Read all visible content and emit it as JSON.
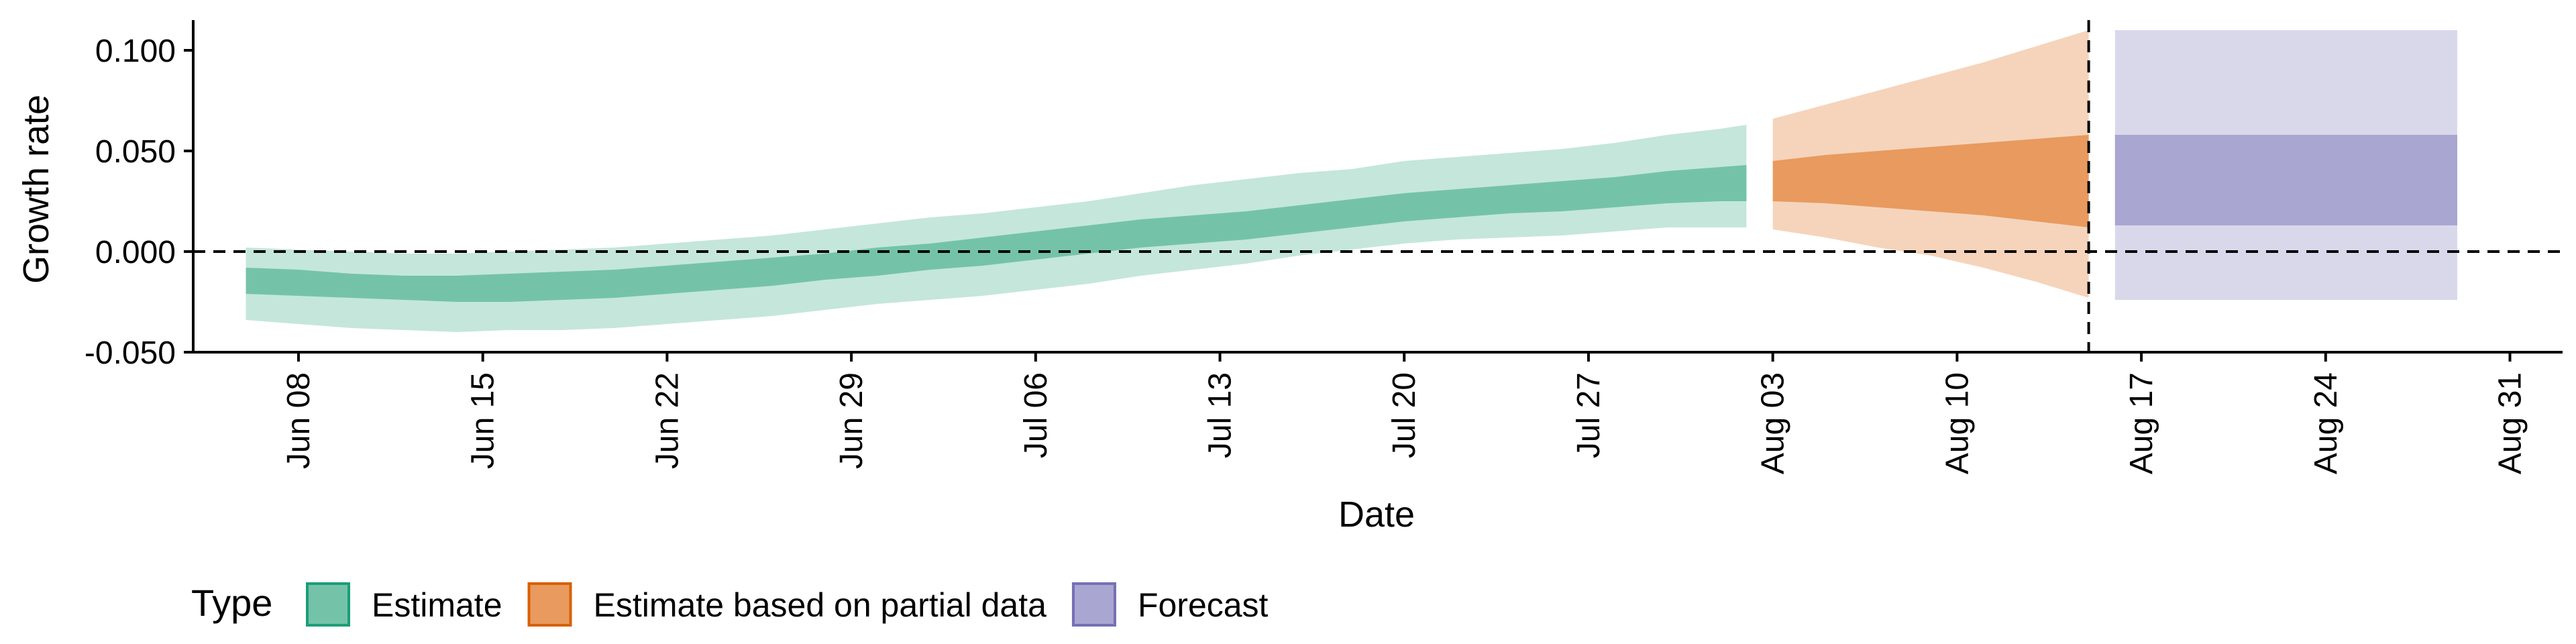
{
  "chart_data": {
    "type": "area",
    "xlabel": "Date",
    "ylabel": "Growth rate",
    "x_type": "date",
    "xlim": [
      "2020-06-04",
      "2020-09-02"
    ],
    "ylim": [
      -0.05,
      0.115
    ],
    "y_ticks": [
      {
        "value": -0.05,
        "label": "-0.050"
      },
      {
        "value": 0.0,
        "label": "0.000"
      },
      {
        "value": 0.05,
        "label": "0.050"
      },
      {
        "value": 0.1,
        "label": "0.100"
      }
    ],
    "x_ticks": [
      {
        "date": "2020-06-08",
        "label": "Jun 08"
      },
      {
        "date": "2020-06-15",
        "label": "Jun 15"
      },
      {
        "date": "2020-06-22",
        "label": "Jun 22"
      },
      {
        "date": "2020-06-29",
        "label": "Jun 29"
      },
      {
        "date": "2020-07-06",
        "label": "Jul 06"
      },
      {
        "date": "2020-07-13",
        "label": "Jul 13"
      },
      {
        "date": "2020-07-20",
        "label": "Jul 20"
      },
      {
        "date": "2020-07-27",
        "label": "Jul 27"
      },
      {
        "date": "2020-08-03",
        "label": "Aug 03"
      },
      {
        "date": "2020-08-10",
        "label": "Aug 10"
      },
      {
        "date": "2020-08-17",
        "label": "Aug 17"
      },
      {
        "date": "2020-08-24",
        "label": "Aug 24"
      },
      {
        "date": "2020-08-31",
        "label": "Aug 31"
      }
    ],
    "hline_y": 0.0,
    "vline_date": "2020-08-15",
    "legend_title": "Type",
    "legend_position": "bottom-left",
    "grid": false,
    "series": [
      {
        "name": "Estimate",
        "color": "#1b9e77",
        "fill_inner": "#74c3a9",
        "fill_outer": "#c5e6db",
        "points": [
          {
            "x": "2020-06-06",
            "lo90": -0.034,
            "lo50": -0.021,
            "hi50": -0.008,
            "hi90": 0.002
          },
          {
            "x": "2020-06-08",
            "lo90": -0.036,
            "lo50": -0.022,
            "hi50": -0.009,
            "hi90": 0.001
          },
          {
            "x": "2020-06-10",
            "lo90": -0.038,
            "lo50": -0.023,
            "hi50": -0.011,
            "hi90": 0.0
          },
          {
            "x": "2020-06-12",
            "lo90": -0.039,
            "lo50": -0.024,
            "hi50": -0.012,
            "hi90": -0.001
          },
          {
            "x": "2020-06-14",
            "lo90": -0.04,
            "lo50": -0.025,
            "hi50": -0.012,
            "hi90": -0.001
          },
          {
            "x": "2020-06-16",
            "lo90": -0.039,
            "lo50": -0.025,
            "hi50": -0.011,
            "hi90": 0.0
          },
          {
            "x": "2020-06-18",
            "lo90": -0.039,
            "lo50": -0.024,
            "hi50": -0.01,
            "hi90": 0.001
          },
          {
            "x": "2020-06-20",
            "lo90": -0.038,
            "lo50": -0.023,
            "hi50": -0.009,
            "hi90": 0.002
          },
          {
            "x": "2020-06-22",
            "lo90": -0.036,
            "lo50": -0.021,
            "hi50": -0.007,
            "hi90": 0.004
          },
          {
            "x": "2020-06-24",
            "lo90": -0.034,
            "lo50": -0.019,
            "hi50": -0.005,
            "hi90": 0.006
          },
          {
            "x": "2020-06-26",
            "lo90": -0.032,
            "lo50": -0.017,
            "hi50": -0.003,
            "hi90": 0.008
          },
          {
            "x": "2020-06-28",
            "lo90": -0.029,
            "lo50": -0.014,
            "hi50": -0.001,
            "hi90": 0.011
          },
          {
            "x": "2020-06-30",
            "lo90": -0.026,
            "lo50": -0.012,
            "hi50": 0.002,
            "hi90": 0.014
          },
          {
            "x": "2020-07-02",
            "lo90": -0.024,
            "lo50": -0.009,
            "hi50": 0.004,
            "hi90": 0.017
          },
          {
            "x": "2020-07-04",
            "lo90": -0.022,
            "lo50": -0.007,
            "hi50": 0.007,
            "hi90": 0.019
          },
          {
            "x": "2020-07-06",
            "lo90": -0.019,
            "lo50": -0.004,
            "hi50": 0.01,
            "hi90": 0.022
          },
          {
            "x": "2020-07-08",
            "lo90": -0.016,
            "lo50": -0.001,
            "hi50": 0.013,
            "hi90": 0.025
          },
          {
            "x": "2020-07-10",
            "lo90": -0.012,
            "lo50": 0.002,
            "hi50": 0.016,
            "hi90": 0.029
          },
          {
            "x": "2020-07-12",
            "lo90": -0.009,
            "lo50": 0.004,
            "hi50": 0.018,
            "hi90": 0.033
          },
          {
            "x": "2020-07-14",
            "lo90": -0.006,
            "lo50": 0.006,
            "hi50": 0.02,
            "hi90": 0.036
          },
          {
            "x": "2020-07-16",
            "lo90": -0.002,
            "lo50": 0.009,
            "hi50": 0.023,
            "hi90": 0.039
          },
          {
            "x": "2020-07-18",
            "lo90": 0.001,
            "lo50": 0.012,
            "hi50": 0.026,
            "hi90": 0.041
          },
          {
            "x": "2020-07-20",
            "lo90": 0.004,
            "lo50": 0.015,
            "hi50": 0.029,
            "hi90": 0.045
          },
          {
            "x": "2020-07-22",
            "lo90": 0.006,
            "lo50": 0.017,
            "hi50": 0.031,
            "hi90": 0.047
          },
          {
            "x": "2020-07-24",
            "lo90": 0.007,
            "lo50": 0.019,
            "hi50": 0.033,
            "hi90": 0.049
          },
          {
            "x": "2020-07-26",
            "lo90": 0.008,
            "lo50": 0.02,
            "hi50": 0.035,
            "hi90": 0.051
          },
          {
            "x": "2020-07-28",
            "lo90": 0.01,
            "lo50": 0.022,
            "hi50": 0.037,
            "hi90": 0.054
          },
          {
            "x": "2020-07-30",
            "lo90": 0.012,
            "lo50": 0.024,
            "hi50": 0.04,
            "hi90": 0.058
          },
          {
            "x": "2020-08-01",
            "lo90": 0.012,
            "lo50": 0.025,
            "hi50": 0.042,
            "hi90": 0.061
          },
          {
            "x": "2020-08-02",
            "lo90": 0.012,
            "lo50": 0.025,
            "hi50": 0.043,
            "hi90": 0.063
          }
        ]
      },
      {
        "name": "Estimate based on partial data",
        "color": "#d95f02",
        "fill_inner": "#e89a5f",
        "fill_outer": "#f5d4bb",
        "points": [
          {
            "x": "2020-08-03",
            "lo90": 0.011,
            "lo50": 0.025,
            "hi50": 0.045,
            "hi90": 0.066
          },
          {
            "x": "2020-08-05",
            "lo90": 0.007,
            "lo50": 0.024,
            "hi50": 0.048,
            "hi90": 0.073
          },
          {
            "x": "2020-08-07",
            "lo90": 0.002,
            "lo50": 0.022,
            "hi50": 0.05,
            "hi90": 0.08
          },
          {
            "x": "2020-08-09",
            "lo90": -0.002,
            "lo50": 0.02,
            "hi50": 0.052,
            "hi90": 0.087
          },
          {
            "x": "2020-08-11",
            "lo90": -0.008,
            "lo50": 0.018,
            "hi50": 0.054,
            "hi90": 0.094
          },
          {
            "x": "2020-08-13",
            "lo90": -0.015,
            "lo50": 0.015,
            "hi50": 0.056,
            "hi90": 0.102
          },
          {
            "x": "2020-08-15",
            "lo90": -0.023,
            "lo50": 0.012,
            "hi50": 0.058,
            "hi90": 0.11
          }
        ]
      },
      {
        "name": "Forecast",
        "color": "#7570b3",
        "fill_inner": "#a9a6d1",
        "fill_outer": "#d9d8eb",
        "points": [
          {
            "x": "2020-08-16",
            "lo90": -0.024,
            "lo50": 0.013,
            "hi50": 0.058,
            "hi90": 0.11
          },
          {
            "x": "2020-08-29",
            "lo90": -0.024,
            "lo50": 0.013,
            "hi50": 0.058,
            "hi90": 0.11
          }
        ]
      }
    ]
  }
}
